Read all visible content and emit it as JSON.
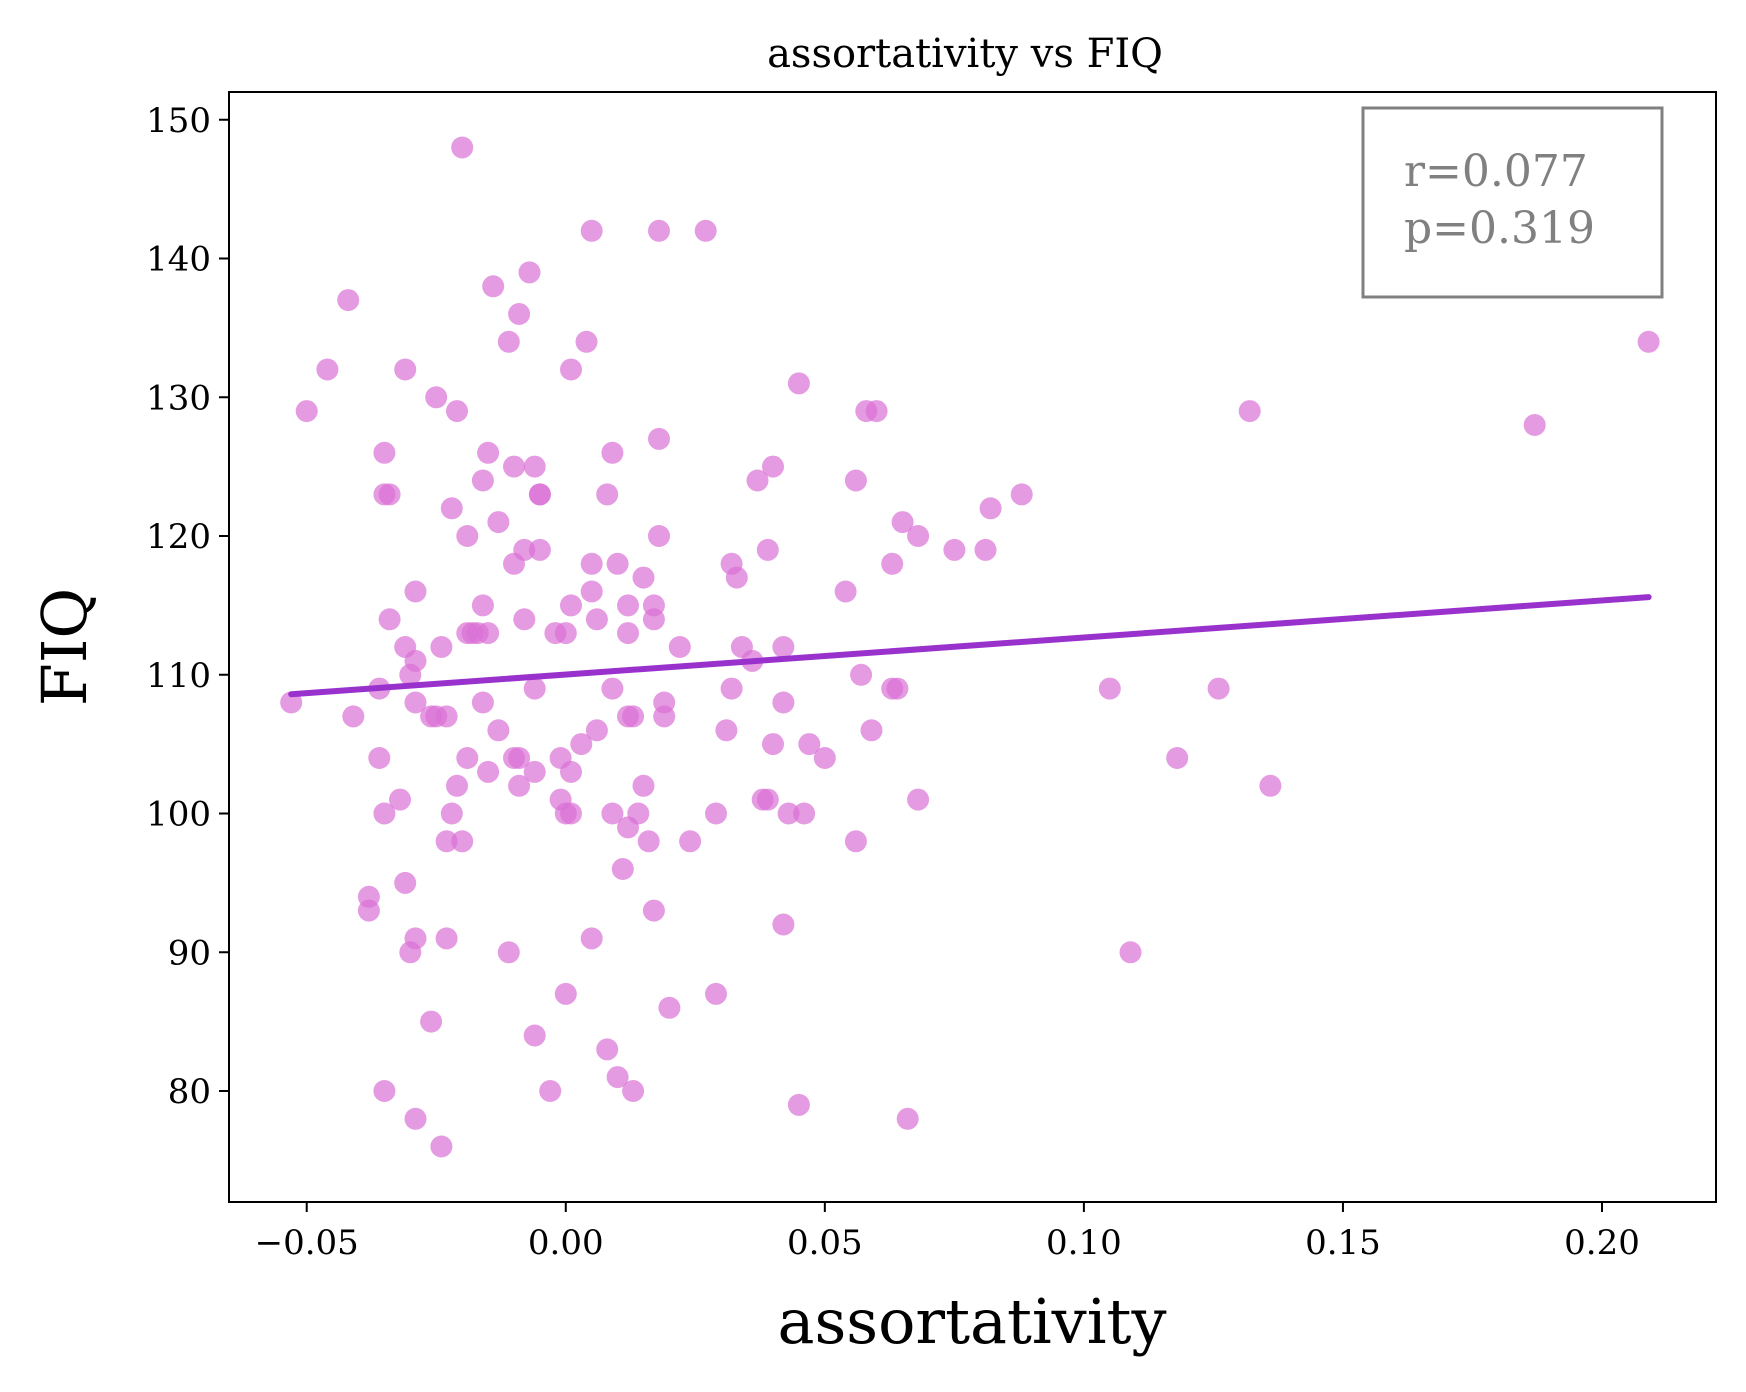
{
  "chart_data": {
    "type": "scatter",
    "title": "assortativity vs FIQ",
    "xlabel": "assortativity",
    "ylabel": "FIQ",
    "xlim": [
      -0.065,
      0.222
    ],
    "ylim": [
      72,
      152
    ],
    "xticks": [
      -0.05,
      0.0,
      0.05,
      0.1,
      0.15,
      0.2
    ],
    "xtick_labels": [
      "−0.05",
      "0.00",
      "0.05",
      "0.10",
      "0.15",
      "0.20"
    ],
    "yticks": [
      80,
      90,
      100,
      110,
      120,
      130,
      140,
      150
    ],
    "ytick_labels": [
      "80",
      "90",
      "100",
      "110",
      "120",
      "130",
      "140",
      "150"
    ],
    "grid": false,
    "annotation": {
      "lines": [
        "r=0.077",
        "p=0.319"
      ],
      "placement": "top-right"
    },
    "colors": {
      "points": "#da70d6",
      "fit_line": "#9932cc",
      "annotation": "#808080"
    },
    "fit_line": {
      "x": [
        -0.053,
        0.209
      ],
      "y": [
        108.6,
        115.6
      ]
    },
    "points": [
      [
        -0.053,
        108
      ],
      [
        -0.05,
        129
      ],
      [
        -0.046,
        132
      ],
      [
        -0.042,
        137
      ],
      [
        -0.041,
        107
      ],
      [
        -0.038,
        93
      ],
      [
        -0.038,
        94
      ],
      [
        -0.036,
        109
      ],
      [
        -0.036,
        104
      ],
      [
        -0.035,
        126
      ],
      [
        -0.035,
        123
      ],
      [
        -0.034,
        123
      ],
      [
        -0.035,
        100
      ],
      [
        -0.034,
        114
      ],
      [
        -0.035,
        80
      ],
      [
        -0.032,
        101
      ],
      [
        -0.031,
        132
      ],
      [
        -0.031,
        112
      ],
      [
        -0.031,
        95
      ],
      [
        -0.03,
        110
      ],
      [
        -0.029,
        108
      ],
      [
        -0.03,
        90
      ],
      [
        -0.029,
        116
      ],
      [
        -0.029,
        111
      ],
      [
        -0.029,
        91
      ],
      [
        -0.029,
        78
      ],
      [
        -0.026,
        107
      ],
      [
        -0.026,
        85
      ],
      [
        -0.025,
        130
      ],
      [
        -0.024,
        112
      ],
      [
        -0.025,
        107
      ],
      [
        -0.023,
        107
      ],
      [
        -0.023,
        98
      ],
      [
        -0.023,
        91
      ],
      [
        -0.024,
        76
      ],
      [
        -0.022,
        122
      ],
      [
        -0.022,
        100
      ],
      [
        -0.021,
        129
      ],
      [
        -0.02,
        148
      ],
      [
        -0.021,
        102
      ],
      [
        -0.02,
        98
      ],
      [
        -0.019,
        120
      ],
      [
        -0.019,
        113
      ],
      [
        -0.019,
        104
      ],
      [
        -0.018,
        113
      ],
      [
        -0.017,
        113
      ],
      [
        -0.016,
        108
      ],
      [
        -0.016,
        115
      ],
      [
        -0.016,
        124
      ],
      [
        -0.015,
        126
      ],
      [
        -0.015,
        113
      ],
      [
        -0.015,
        103
      ],
      [
        -0.014,
        138
      ],
      [
        -0.013,
        121
      ],
      [
        -0.013,
        106
      ],
      [
        -0.011,
        134
      ],
      [
        -0.011,
        90
      ],
      [
        -0.01,
        125
      ],
      [
        -0.01,
        118
      ],
      [
        -0.01,
        104
      ],
      [
        -0.009,
        136
      ],
      [
        -0.009,
        104
      ],
      [
        -0.009,
        102
      ],
      [
        -0.008,
        119
      ],
      [
        -0.008,
        114
      ],
      [
        -0.007,
        139
      ],
      [
        -0.006,
        125
      ],
      [
        -0.006,
        109
      ],
      [
        -0.006,
        103
      ],
      [
        -0.006,
        84
      ],
      [
        -0.005,
        123
      ],
      [
        -0.005,
        123
      ],
      [
        -0.005,
        119
      ],
      [
        -0.003,
        80
      ],
      [
        -0.002,
        113
      ],
      [
        -0.001,
        104
      ],
      [
        -0.001,
        101
      ],
      [
        0.0,
        113
      ],
      [
        0.0,
        100
      ],
      [
        0.0,
        87
      ],
      [
        0.001,
        132
      ],
      [
        0.001,
        115
      ],
      [
        0.001,
        103
      ],
      [
        0.001,
        100
      ],
      [
        0.003,
        105
      ],
      [
        0.004,
        134
      ],
      [
        0.005,
        116
      ],
      [
        0.005,
        118
      ],
      [
        0.005,
        91
      ],
      [
        0.005,
        142
      ],
      [
        0.006,
        114
      ],
      [
        0.006,
        106
      ],
      [
        0.008,
        83
      ],
      [
        0.008,
        123
      ],
      [
        0.009,
        126
      ],
      [
        0.009,
        100
      ],
      [
        0.009,
        109
      ],
      [
        0.01,
        118
      ],
      [
        0.01,
        81
      ],
      [
        0.011,
        96
      ],
      [
        0.012,
        113
      ],
      [
        0.012,
        115
      ],
      [
        0.012,
        107
      ],
      [
        0.012,
        99
      ],
      [
        0.013,
        107
      ],
      [
        0.013,
        80
      ],
      [
        0.014,
        100
      ],
      [
        0.015,
        117
      ],
      [
        0.015,
        102
      ],
      [
        0.016,
        98
      ],
      [
        0.017,
        115
      ],
      [
        0.017,
        114
      ],
      [
        0.017,
        93
      ],
      [
        0.018,
        142
      ],
      [
        0.018,
        127
      ],
      [
        0.018,
        120
      ],
      [
        0.019,
        108
      ],
      [
        0.019,
        107
      ],
      [
        0.02,
        86
      ],
      [
        0.022,
        112
      ],
      [
        0.024,
        98
      ],
      [
        0.027,
        142
      ],
      [
        0.029,
        87
      ],
      [
        0.029,
        100
      ],
      [
        0.031,
        106
      ],
      [
        0.032,
        118
      ],
      [
        0.032,
        109
      ],
      [
        0.033,
        117
      ],
      [
        0.034,
        112
      ],
      [
        0.036,
        111
      ],
      [
        0.037,
        124
      ],
      [
        0.038,
        101
      ],
      [
        0.039,
        101
      ],
      [
        0.039,
        119
      ],
      [
        0.04,
        125
      ],
      [
        0.04,
        105
      ],
      [
        0.042,
        92
      ],
      [
        0.042,
        108
      ],
      [
        0.042,
        112
      ],
      [
        0.043,
        100
      ],
      [
        0.045,
        131
      ],
      [
        0.045,
        79
      ],
      [
        0.046,
        100
      ],
      [
        0.047,
        105
      ],
      [
        0.05,
        104
      ],
      [
        0.054,
        116
      ],
      [
        0.056,
        124
      ],
      [
        0.056,
        98
      ],
      [
        0.057,
        110
      ],
      [
        0.058,
        129
      ],
      [
        0.059,
        106
      ],
      [
        0.06,
        129
      ],
      [
        0.063,
        118
      ],
      [
        0.063,
        109
      ],
      [
        0.064,
        109
      ],
      [
        0.065,
        121
      ],
      [
        0.066,
        78
      ],
      [
        0.068,
        101
      ],
      [
        0.068,
        120
      ],
      [
        0.075,
        119
      ],
      [
        0.081,
        119
      ],
      [
        0.082,
        122
      ],
      [
        0.088,
        123
      ],
      [
        0.105,
        109
      ],
      [
        0.109,
        90
      ],
      [
        0.118,
        104
      ],
      [
        0.126,
        109
      ],
      [
        0.132,
        129
      ],
      [
        0.136,
        102
      ],
      [
        0.187,
        128
      ],
      [
        0.209,
        134
      ]
    ]
  }
}
